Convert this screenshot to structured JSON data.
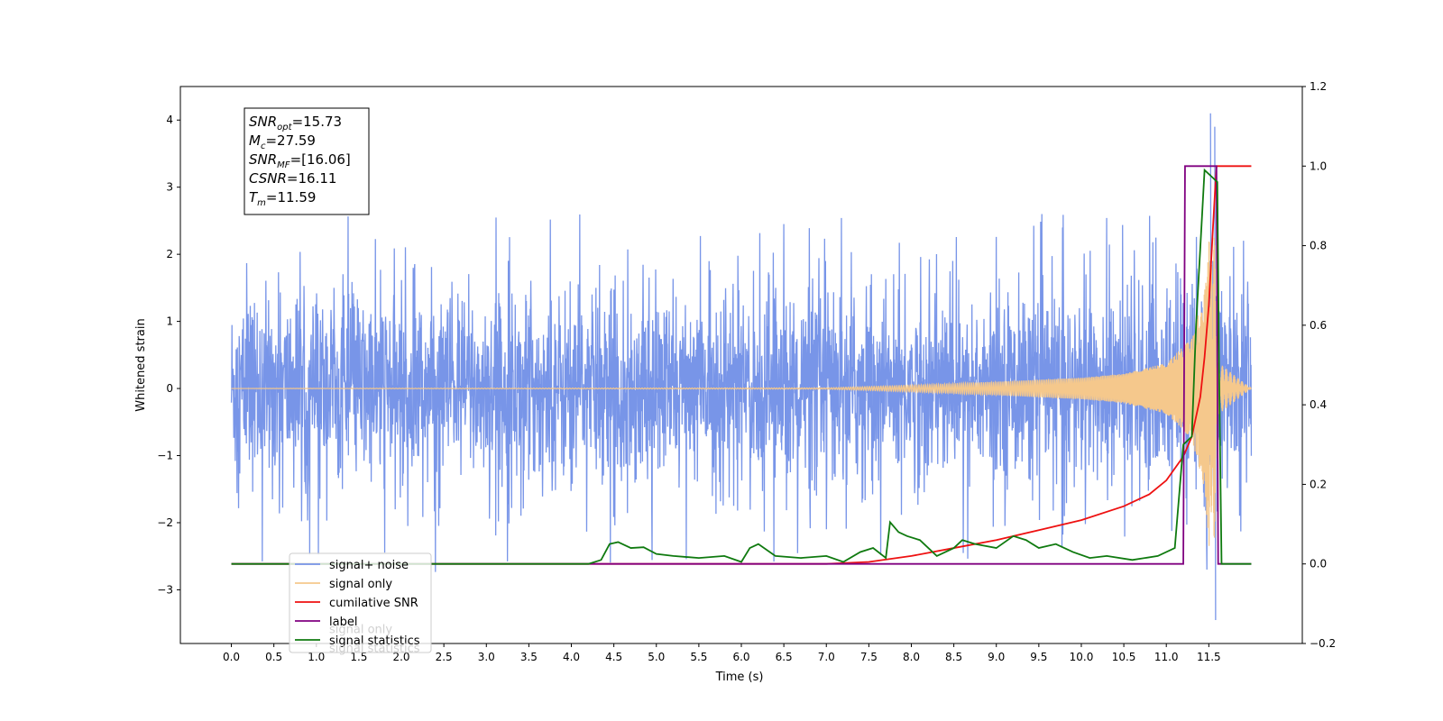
{
  "chart_data": {
    "type": "line",
    "xlabel": "Time (s)",
    "ylabel": "Whitened strain",
    "xlim": [
      -0.6,
      12.6
    ],
    "ylim": [
      -3.8,
      4.5
    ],
    "y2lim": [
      -0.2,
      1.2
    ],
    "x_ticks": [
      0.0,
      0.5,
      1.0,
      1.5,
      2.0,
      2.5,
      3.0,
      3.5,
      4.0,
      4.5,
      5.0,
      5.5,
      6.0,
      6.5,
      7.0,
      7.5,
      8.0,
      8.5,
      9.0,
      9.5,
      10.0,
      10.5,
      11.0,
      11.5
    ],
    "y_ticks": [
      -3,
      -2,
      -1,
      0,
      1,
      2,
      3,
      4
    ],
    "y2_ticks": [
      -0.2,
      0.0,
      0.2,
      0.4,
      0.6,
      0.8,
      1.0,
      1.2
    ],
    "grid": false,
    "legend_position": "lower-left",
    "annotation": [
      {
        "base": "SNR",
        "sub": "opt",
        "value": "=15.73"
      },
      {
        "base": "M",
        "sub": "c",
        "value": "=27.59"
      },
      {
        "base": "SNR",
        "sub": "MF",
        "value": "=[16.06]"
      },
      {
        "base": "CSNR",
        "sub": "",
        "value": "=16.11"
      },
      {
        "base": "T",
        "sub": "m",
        "value": "=11.59"
      }
    ],
    "series": [
      {
        "name": "signal+ noise",
        "color": "#7895e8",
        "axis": "left",
        "x_range": [
          0.0,
          12.0
        ],
        "noise_std": 0.68,
        "spike_max": 2.6,
        "burst_x": [
          11.0,
          11.6
        ],
        "burst_max": 4.1,
        "burst_min": -3.45
      },
      {
        "name": "signal only",
        "color": "#f5c88c",
        "axis": "left",
        "x_range": [
          0.0,
          12.0
        ],
        "envelope": [
          [
            0,
            0
          ],
          [
            7.0,
            0.01
          ],
          [
            8.0,
            0.05
          ],
          [
            9.0,
            0.1
          ],
          [
            10.0,
            0.16
          ],
          [
            10.5,
            0.22
          ],
          [
            11.0,
            0.38
          ],
          [
            11.3,
            0.75
          ],
          [
            11.45,
            1.5
          ],
          [
            11.55,
            3.1
          ],
          [
            11.6,
            0.4
          ],
          [
            12.0,
            0
          ]
        ]
      },
      {
        "name": "cumilative SNR",
        "color": "#ee1111",
        "axis": "right",
        "x": [
          0,
          7.0,
          7.5,
          8.0,
          8.5,
          9.0,
          9.5,
          10.0,
          10.5,
          10.8,
          11.0,
          11.2,
          11.3,
          11.4,
          11.45,
          11.5,
          11.55,
          11.59,
          11.6,
          12.0
        ],
        "values": [
          0,
          0,
          0.005,
          0.02,
          0.04,
          0.06,
          0.085,
          0.11,
          0.145,
          0.175,
          0.21,
          0.27,
          0.32,
          0.42,
          0.52,
          0.65,
          0.85,
          1.0,
          1.0,
          1.0
        ]
      },
      {
        "name": "label",
        "color": "#800080",
        "axis": "right",
        "x": [
          0,
          11.2,
          11.22,
          11.59,
          11.61,
          12.0
        ],
        "values": [
          0,
          0,
          1,
          1,
          0,
          0
        ]
      },
      {
        "name": "signal statistics",
        "color": "#0f7a0f",
        "axis": "right",
        "x": [
          0,
          4.2,
          4.35,
          4.45,
          4.55,
          4.7,
          4.85,
          5.0,
          5.2,
          5.5,
          5.8,
          6.0,
          6.1,
          6.2,
          6.4,
          6.7,
          7.0,
          7.2,
          7.4,
          7.55,
          7.7,
          7.75,
          7.85,
          7.95,
          8.1,
          8.3,
          8.5,
          8.6,
          8.75,
          9.0,
          9.2,
          9.35,
          9.5,
          9.7,
          9.9,
          10.1,
          10.3,
          10.6,
          10.9,
          11.1,
          11.2,
          11.3,
          11.35,
          11.45,
          11.55,
          11.6,
          11.62,
          11.65,
          12.0
        ],
        "values": [
          0,
          0,
          0.01,
          0.05,
          0.055,
          0.04,
          0.042,
          0.025,
          0.02,
          0.015,
          0.02,
          0.005,
          0.04,
          0.05,
          0.02,
          0.015,
          0.02,
          0.005,
          0.03,
          0.04,
          0.015,
          0.105,
          0.08,
          0.07,
          0.06,
          0.02,
          0.04,
          0.06,
          0.05,
          0.04,
          0.07,
          0.06,
          0.04,
          0.05,
          0.03,
          0.015,
          0.02,
          0.01,
          0.02,
          0.04,
          0.3,
          0.32,
          0.6,
          0.99,
          0.97,
          0.96,
          0.5,
          0,
          0
        ]
      }
    ],
    "legend_order": [
      "signal+ noise",
      "signal only",
      "cumilative SNR",
      "label",
      "signal statistics"
    ],
    "overlapping_legend_text": [
      "signal only",
      "signal statistics"
    ]
  }
}
